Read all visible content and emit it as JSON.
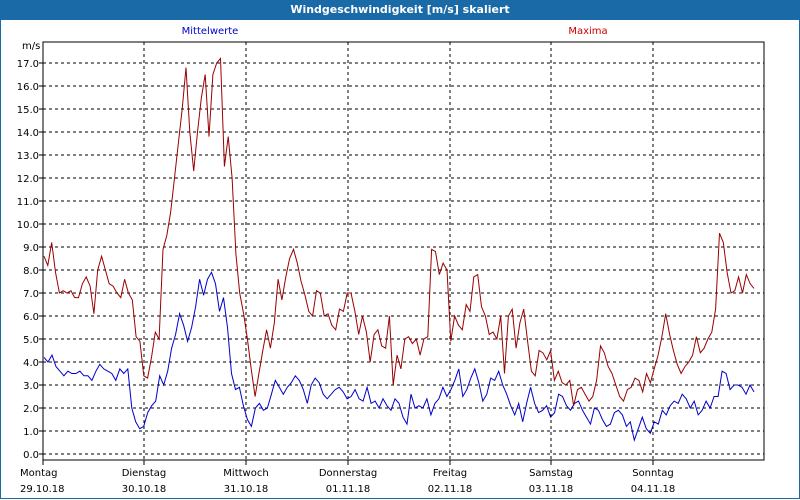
{
  "window": {
    "title": "Windgeschwindigkeit [m/s] skaliert"
  },
  "chart_data": {
    "type": "line",
    "title": "Windgeschwindigkeit [m/s] skaliert",
    "ylabel": "m/s",
    "ylim": [
      0,
      17.5
    ],
    "yticks": [
      "0.0",
      "1.0",
      "2.0",
      "3.0",
      "4.0",
      "5.0",
      "6.0",
      "7.0",
      "8.0",
      "9.0",
      "10.0",
      "11.0",
      "12.0",
      "13.0",
      "14.0",
      "15.0",
      "16.0",
      "17.0"
    ],
    "grid": true,
    "legend_placement": "top",
    "days": [
      {
        "day": "Montag",
        "date": "29.10.18"
      },
      {
        "day": "Dienstag",
        "date": "30.10.18"
      },
      {
        "day": "Mittwoch",
        "date": "31.10.18"
      },
      {
        "day": "Donnerstag",
        "date": "01.11.18"
      },
      {
        "day": "Freitag",
        "date": "02.11.18"
      },
      {
        "day": "Samstag",
        "date": "03.11.18"
      },
      {
        "day": "Sonntag",
        "date": "04.11.18"
      }
    ],
    "series": [
      {
        "name": "Mittelwerte",
        "color": "#0000cc",
        "values": [
          4.2,
          4.0,
          4.3,
          3.8,
          3.6,
          3.4,
          3.6,
          3.5,
          3.5,
          3.6,
          3.4,
          3.4,
          3.2,
          3.6,
          3.9,
          3.7,
          3.6,
          3.5,
          3.2,
          3.7,
          3.5,
          3.7,
          2.0,
          1.4,
          1.1,
          1.2,
          1.8,
          2.1,
          2.3,
          3.4,
          3.0,
          3.6,
          4.6,
          5.2,
          6.1,
          5.6,
          4.9,
          5.5,
          6.4,
          7.6,
          6.9,
          7.6,
          7.9,
          7.4,
          6.2,
          6.8,
          5.5,
          3.5,
          2.8,
          2.9,
          2.1,
          1.5,
          1.2,
          2.0,
          2.2,
          1.9,
          2.0,
          2.6,
          3.2,
          2.9,
          2.6,
          2.9,
          3.1,
          3.4,
          3.2,
          2.8,
          2.2,
          3.0,
          3.3,
          3.1,
          2.6,
          2.4,
          2.6,
          2.8,
          2.9,
          2.7,
          2.4,
          2.5,
          2.8,
          2.4,
          2.3,
          2.9,
          2.2,
          2.3,
          2.0,
          2.4,
          2.1,
          1.9,
          2.4,
          2.2,
          1.6,
          1.3,
          2.6,
          2.0,
          2.1,
          2.0,
          2.4,
          1.7,
          2.2,
          2.4,
          2.9,
          2.5,
          2.8,
          3.2,
          3.7,
          2.5,
          2.8,
          3.3,
          3.7,
          3.1,
          2.3,
          2.6,
          3.3,
          3.2,
          3.6,
          3.0,
          2.6,
          2.1,
          1.7,
          2.2,
          1.4,
          2.2,
          2.9,
          2.2,
          1.8,
          1.9,
          2.1,
          1.6,
          1.8,
          2.6,
          2.5,
          2.1,
          1.9,
          2.2,
          2.3,
          1.9,
          1.6,
          1.3,
          2.0,
          1.9,
          1.5,
          1.2,
          1.3,
          1.8,
          1.9,
          1.7,
          1.2,
          1.4,
          0.6,
          1.1,
          1.6,
          1.1,
          0.9,
          1.4,
          1.3,
          1.9,
          1.7,
          2.1,
          2.3,
          2.2,
          2.6,
          2.4,
          2.0,
          2.3,
          1.7,
          1.9,
          2.3,
          2.0,
          2.5,
          2.5,
          3.6,
          3.5,
          2.8,
          3.0,
          3.0,
          2.9,
          2.6,
          3.0,
          2.7
        ]
      },
      {
        "name": "Maxima",
        "color": "#990000",
        "values": [
          8.6,
          8.2,
          9.2,
          7.9,
          7.0,
          7.1,
          7.0,
          7.1,
          6.8,
          6.8,
          7.4,
          7.7,
          7.3,
          6.1,
          8.0,
          8.6,
          8.0,
          7.4,
          7.3,
          7.0,
          6.8,
          7.6,
          7.0,
          6.7,
          5.1,
          4.9,
          3.4,
          3.3,
          4.2,
          5.3,
          5.0,
          8.9,
          9.5,
          10.5,
          12.0,
          13.5,
          15.0,
          16.8,
          14.0,
          12.3,
          14.0,
          15.5,
          16.5,
          13.8,
          16.5,
          17.0,
          17.2,
          12.5,
          13.8,
          12.0,
          8.7,
          7.0,
          6.1,
          5.0,
          3.7,
          2.5,
          3.5,
          4.5,
          5.4,
          4.6,
          5.7,
          7.6,
          6.7,
          7.7,
          8.5,
          8.9,
          8.3,
          7.5,
          6.9,
          6.2,
          6.0,
          7.1,
          7.0,
          6.0,
          6.1,
          5.6,
          5.4,
          6.3,
          6.2,
          7.0,
          7.0,
          6.2,
          5.2,
          6.0,
          5.3,
          4.0,
          5.2,
          5.4,
          4.7,
          4.6,
          6.0,
          3.0,
          4.3,
          3.7,
          5.0,
          5.1,
          4.8,
          5.0,
          4.3,
          5.0,
          5.1,
          8.9,
          8.8,
          7.8,
          8.3,
          8.0,
          4.9,
          6.0,
          5.6,
          5.4,
          6.5,
          6.2,
          7.7,
          7.8,
          6.4,
          6.0,
          5.2,
          5.3,
          5.0,
          6.0,
          3.5,
          6.0,
          6.3,
          4.6,
          5.7,
          6.3,
          4.9,
          3.6,
          3.4,
          4.5,
          4.4,
          4.1,
          4.5,
          3.2,
          3.6,
          3.1,
          3.0,
          3.2,
          2.1,
          2.8,
          2.9,
          2.6,
          2.3,
          2.5,
          3.2,
          4.7,
          4.4,
          3.8,
          3.5,
          3.0,
          2.5,
          2.3,
          2.8,
          2.9,
          3.3,
          3.2,
          2.7,
          3.5,
          3.1,
          3.7,
          4.3,
          5.1,
          6.1,
          5.2,
          4.5,
          3.9,
          3.5,
          3.8,
          4.0,
          4.3,
          5.1,
          4.4,
          4.6,
          5.0,
          5.3,
          6.3,
          9.6,
          9.2,
          7.9,
          7.0,
          7.1,
          7.7,
          7.0,
          7.8,
          7.4,
          7.2
        ]
      }
    ]
  }
}
